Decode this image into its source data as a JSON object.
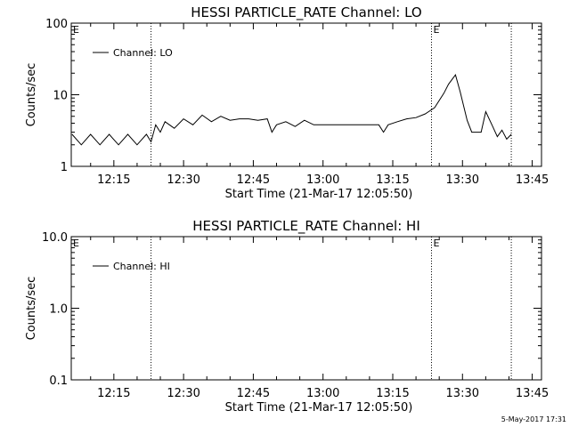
{
  "footer": {
    "date_stamp": "5-May-2017 17:31"
  },
  "chart_data": [
    {
      "type": "line",
      "title": "HESSI PARTICLE_RATE Channel: LO",
      "xlabel": "Start Time (21-Mar-17 12:05:50)",
      "ylabel": "Counts/sec",
      "x_unit": "minutes",
      "xlim": [
        "12:05:50",
        "13:47:00"
      ],
      "x_ticks": [
        "12:15",
        "12:30",
        "12:45",
        "13:00",
        "13:15",
        "13:30",
        "13:45"
      ],
      "y_scale": "log",
      "ylim": [
        1,
        100
      ],
      "y_ticks": [
        "1",
        "10",
        "100"
      ],
      "legend": {
        "position": "top-left",
        "label": "Channel: LO"
      },
      "markers": [
        {
          "time": "12:23:00",
          "label": ""
        },
        {
          "time": "13:23:20",
          "label": "E"
        },
        {
          "time": "13:40:30",
          "label": ""
        }
      ],
      "corner_labels": [
        "E"
      ],
      "series": [
        {
          "name": "Channel: LO",
          "points": [
            [
              "12:06:00",
              2.8
            ],
            [
              "12:08:00",
              2.0
            ],
            [
              "12:10:00",
              2.8
            ],
            [
              "12:12:00",
              2.0
            ],
            [
              "12:14:00",
              2.8
            ],
            [
              "12:16:00",
              2.0
            ],
            [
              "12:18:00",
              2.8
            ],
            [
              "12:20:00",
              2.0
            ],
            [
              "12:22:00",
              2.8
            ],
            [
              "12:23:00",
              2.2
            ],
            [
              "12:24:00",
              3.8
            ],
            [
              "12:25:00",
              3.0
            ],
            [
              "12:26:00",
              4.2
            ],
            [
              "12:28:00",
              3.4
            ],
            [
              "12:30:00",
              4.6
            ],
            [
              "12:32:00",
              3.8
            ],
            [
              "12:34:00",
              5.2
            ],
            [
              "12:36:00",
              4.2
            ],
            [
              "12:38:00",
              5.0
            ],
            [
              "12:40:00",
              4.4
            ],
            [
              "12:42:00",
              4.6
            ],
            [
              "12:44:00",
              4.6
            ],
            [
              "12:46:00",
              4.4
            ],
            [
              "12:48:00",
              4.6
            ],
            [
              "12:49:00",
              3.0
            ],
            [
              "12:50:00",
              3.8
            ],
            [
              "12:52:00",
              4.2
            ],
            [
              "12:54:00",
              3.6
            ],
            [
              "12:56:00",
              4.4
            ],
            [
              "12:58:00",
              3.8
            ],
            [
              "13:00:00",
              3.8
            ],
            [
              "13:04:00",
              3.8
            ],
            [
              "13:08:00",
              3.8
            ],
            [
              "13:12:00",
              3.8
            ],
            [
              "13:13:00",
              3.0
            ],
            [
              "13:14:00",
              3.8
            ],
            [
              "13:16:00",
              4.2
            ],
            [
              "13:18:00",
              4.6
            ],
            [
              "13:20:00",
              4.8
            ],
            [
              "13:22:00",
              5.4
            ],
            [
              "13:24:00",
              6.6
            ],
            [
              "13:26:00",
              10.5
            ],
            [
              "13:27:00",
              14.0
            ],
            [
              "13:28:30",
              19.0
            ],
            [
              "13:29:30",
              11.0
            ],
            [
              "13:31:00",
              4.4
            ],
            [
              "13:32:00",
              3.0
            ],
            [
              "13:34:00",
              3.0
            ],
            [
              "13:35:00",
              5.8
            ],
            [
              "13:36:30",
              3.6
            ],
            [
              "13:37:30",
              2.6
            ],
            [
              "13:38:30",
              3.2
            ],
            [
              "13:39:30",
              2.4
            ],
            [
              "13:40:30",
              2.8
            ]
          ]
        }
      ]
    },
    {
      "type": "line",
      "title": "HESSI PARTICLE_RATE Channel: HI",
      "xlabel": "Start Time (21-Mar-17 12:05:50)",
      "ylabel": "Counts/sec",
      "x_unit": "minutes",
      "xlim": [
        "12:05:50",
        "13:47:00"
      ],
      "x_ticks": [
        "12:15",
        "12:30",
        "12:45",
        "13:00",
        "13:15",
        "13:30",
        "13:45"
      ],
      "y_scale": "log",
      "ylim": [
        0.1,
        10.0
      ],
      "y_ticks": [
        "0.1",
        "1.0",
        "10.0"
      ],
      "legend": {
        "position": "top-left",
        "label": "Channel: HI"
      },
      "markers": [
        {
          "time": "12:23:00",
          "label": ""
        },
        {
          "time": "13:23:20",
          "label": "E"
        },
        {
          "time": "13:40:30",
          "label": ""
        }
      ],
      "corner_labels": [
        "E"
      ],
      "series": [
        {
          "name": "Channel: HI",
          "points": []
        }
      ]
    }
  ]
}
